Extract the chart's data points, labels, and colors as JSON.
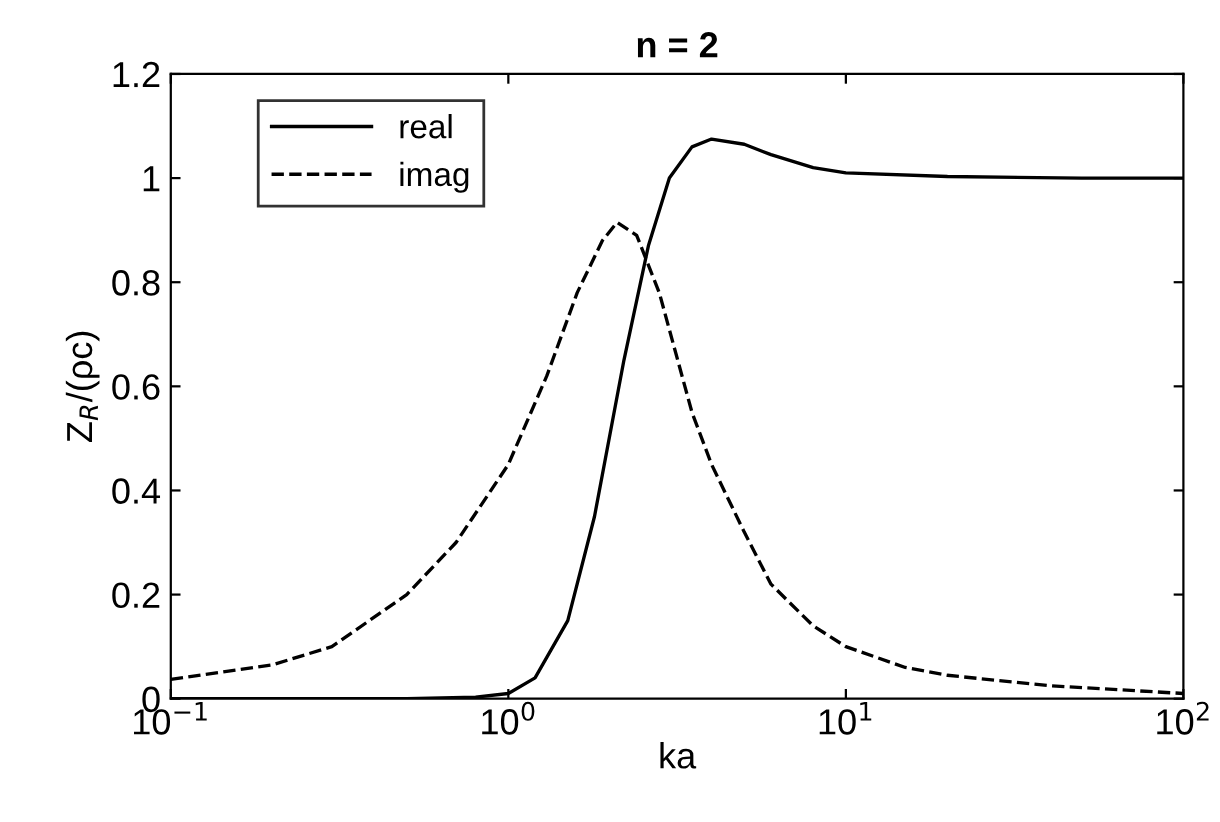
{
  "chart_data": {
    "type": "line",
    "title": "n = 2",
    "xlabel": "ka",
    "ylabel": "Z$_{R}$/(ρc)",
    "log": "x",
    "xlim": [
      0.1,
      100
    ],
    "xticks": [
      {
        "value": 0.1,
        "label": "10$^{−1}$"
      },
      {
        "value": 1,
        "label": "10$^{0}$"
      },
      {
        "value": 10,
        "label": "10$^{1}$"
      },
      {
        "value": 100,
        "label": "10$^{2}$"
      }
    ],
    "ylim": [
      0,
      1.2
    ],
    "yticks": [
      0,
      0.2,
      0.4,
      0.6,
      0.8,
      1,
      1.2
    ],
    "grid": false,
    "legend": "top left",
    "series": [
      {
        "name": "real",
        "color": "#000000",
        "line_style": "solid",
        "x": [
          0.1,
          0.3,
          0.5,
          0.8,
          1.0,
          1.2,
          1.5,
          1.8,
          2.2,
          2.6,
          3.0,
          3.5,
          4.0,
          5.0,
          6.0,
          8.0,
          10,
          20,
          50,
          100
        ],
        "values": [
          0,
          0,
          0,
          0.003,
          0.01,
          0.04,
          0.15,
          0.35,
          0.65,
          0.87,
          1.0,
          1.06,
          1.075,
          1.065,
          1.045,
          1.02,
          1.01,
          1.003,
          1.0,
          1.0
        ]
      },
      {
        "name": "imag",
        "color": "#000000",
        "line_style": "dashed",
        "x": [
          0.1,
          0.2,
          0.3,
          0.5,
          0.7,
          1.0,
          1.3,
          1.6,
          1.9,
          2.1,
          2.4,
          2.8,
          3.5,
          4.0,
          5.0,
          6.0,
          8.0,
          10,
          15,
          20,
          40,
          100
        ],
        "values": [
          0.037,
          0.065,
          0.1,
          0.2,
          0.3,
          0.45,
          0.62,
          0.78,
          0.88,
          0.915,
          0.89,
          0.78,
          0.55,
          0.45,
          0.32,
          0.22,
          0.14,
          0.1,
          0.06,
          0.045,
          0.025,
          0.01
        ]
      }
    ]
  }
}
